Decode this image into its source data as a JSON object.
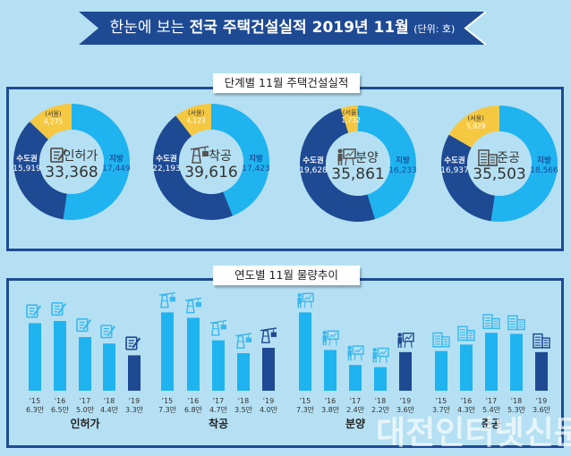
{
  "header": {
    "title_prefix": "한눈에 보는",
    "title_bold": "전국 주택건설실적 2019년 11월",
    "unit": "(단위: 호)"
  },
  "sections": {
    "donut_title": "단계별 11월 주택건설실적",
    "bar_title": "연도별 11월 물량추이"
  },
  "colors": {
    "background": "#b5e0f3",
    "dark_blue": "#1e4a94",
    "light_blue": "#1fb3f0",
    "yellow": "#f5c842",
    "center_circle": "#b5e0f3"
  },
  "watermark": "대전인터넷신문",
  "chart_data": [
    {
      "type": "pie",
      "title": "단계별 11월 주택건설실적",
      "donuts": [
        {
          "name": "인허가",
          "icon": "permit-document-icon",
          "total": "33,368",
          "capital_label": "수도권",
          "capital": 15919,
          "capital_text": "15,919",
          "region_label": "지방",
          "region": 17449,
          "region_text": "17,449",
          "seoul_label": "(서울)",
          "seoul": 4275,
          "seoul_text": "4,275"
        },
        {
          "name": "착공",
          "icon": "crane-icon",
          "total": "39,616",
          "capital_label": "수도권",
          "capital": 22193,
          "capital_text": "22,193",
          "region_label": "지방",
          "region": 17423,
          "region_text": "17,423",
          "seoul_label": "(서울)",
          "seoul": 4123,
          "seoul_text": "4,123"
        },
        {
          "name": "분양",
          "icon": "presentation-board-icon",
          "total": "35,861",
          "capital_label": "수도권",
          "capital": 19628,
          "capital_text": "19,628",
          "region_label": "지방",
          "region": 16233,
          "region_text": "16,233",
          "seoul_label": "(서울)",
          "seoul": 1732,
          "seoul_text": "1,732"
        },
        {
          "name": "준공",
          "icon": "buildings-icon",
          "total": "35,503",
          "capital_label": "수도권",
          "capital": 16937,
          "capital_text": "16,937",
          "region_label": "지방",
          "region": 18566,
          "region_text": "18,566",
          "seoul_label": "(서울)",
          "seoul": 5929,
          "seoul_text": "5,929"
        }
      ]
    },
    {
      "type": "bar",
      "title": "연도별 11월 물량추이",
      "unit": "만",
      "ylim": [
        0,
        8
      ],
      "groups": [
        {
          "name": "인허가",
          "icon": "permit-document-icon",
          "categories": [
            "'15",
            "'16",
            "'17",
            "'18",
            "'19"
          ],
          "values": [
            6.3,
            6.5,
            5.0,
            4.4,
            3.3
          ],
          "labels": [
            "6.3만",
            "6.5만",
            "5.0만",
            "4.4만",
            "3.3만"
          ]
        },
        {
          "name": "착공",
          "icon": "crane-icon",
          "categories": [
            "'15",
            "'16",
            "'17",
            "'18",
            "'19"
          ],
          "values": [
            7.3,
            6.8,
            4.7,
            3.5,
            4.0
          ],
          "labels": [
            "7.3만",
            "6.8만",
            "4.7만",
            "3.5만",
            "4.0만"
          ]
        },
        {
          "name": "분양",
          "icon": "presentation-board-icon",
          "categories": [
            "'15",
            "'16",
            "'17",
            "'18",
            "'19"
          ],
          "values": [
            7.3,
            3.8,
            2.4,
            2.2,
            3.6
          ],
          "labels": [
            "7.3만",
            "3.8만",
            "2.4만",
            "2.2만",
            "3.6만"
          ]
        },
        {
          "name": "준공",
          "icon": "buildings-icon",
          "categories": [
            "'15",
            "'16",
            "'17",
            "'18",
            "'19"
          ],
          "values": [
            3.7,
            4.3,
            5.4,
            5.3,
            3.6
          ],
          "labels": [
            "3.7만",
            "4.3만",
            "5.4만",
            "5.3만",
            "3.6만"
          ]
        }
      ],
      "highlight_category": "'19"
    }
  ]
}
